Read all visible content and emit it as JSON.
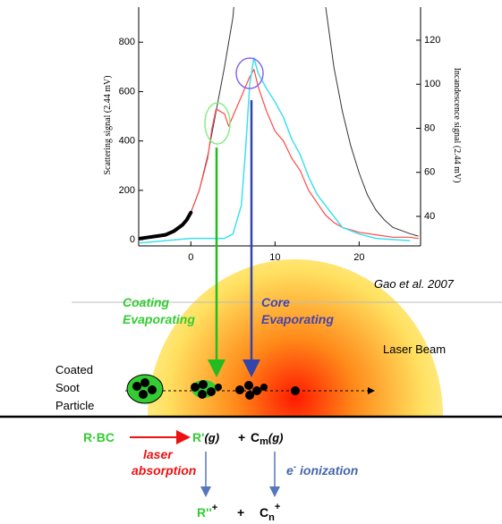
{
  "chart_data": {
    "type": "line",
    "xlim": [
      -6.2,
      27.3
    ],
    "xticks": [
      0,
      10,
      20
    ],
    "ylim": [
      -25,
      942
    ],
    "yticks": [
      0,
      200,
      400,
      600,
      800
    ],
    "y2lim": [
      26.6,
      135
    ],
    "y2ticks": [
      40,
      60,
      80,
      100,
      120
    ],
    "ylabel": "Scattering signal (2.44 mV)",
    "y2label": "Incandescence signal (2.44 mV)",
    "annotation": "Gao et al. 2007",
    "series": [
      {
        "color": "#333333",
        "line_width": 1,
        "x": [
          0,
          1,
          2,
          3,
          4,
          5,
          5.5,
          10,
          15.6,
          16,
          17,
          18,
          19,
          20,
          21,
          22,
          23,
          24,
          26,
          27
        ],
        "values": [
          110,
          200,
          340,
          520,
          700,
          900,
          1100,
          null,
          1100,
          950,
          700,
          520,
          380,
          270,
          180,
          120,
          80,
          50,
          25,
          15
        ]
      },
      {
        "color": "#ff4a4a",
        "line_width": 1.2,
        "x": [
          0,
          1,
          2,
          2.5,
          3,
          4,
          4.5,
          5,
          6,
          7,
          7.5,
          8,
          9,
          10,
          11,
          12,
          13,
          14,
          15,
          16,
          17,
          18,
          20,
          22,
          24,
          26,
          27
        ],
        "values": [
          110,
          200,
          330,
          450,
          530,
          510,
          460,
          500,
          580,
          660,
          690,
          620,
          520,
          440,
          400,
          330,
          280,
          200,
          150,
          100,
          70,
          50,
          30,
          20,
          10,
          10,
          5
        ]
      },
      {
        "color": "#3fe0f0",
        "line_width": 1.5,
        "axis": "y2",
        "x": [
          -6,
          0,
          4,
          5,
          6,
          6.5,
          7,
          7.5,
          8,
          9,
          10,
          11,
          12,
          13,
          14,
          15,
          16,
          17,
          18,
          20,
          22,
          26
        ],
        "values": [
          28,
          30,
          30,
          32,
          45,
          70,
          100,
          112,
          105,
          98,
          92,
          85,
          75,
          68,
          58,
          50,
          45,
          40,
          35,
          32,
          30,
          29
        ]
      },
      {
        "color": "#000000",
        "line_width": 4,
        "x": [
          -6,
          -5,
          -4,
          -3,
          -2,
          -1,
          -0.5,
          0
        ],
        "values": [
          5,
          10,
          15,
          20,
          35,
          60,
          80,
          110
        ]
      }
    ]
  },
  "diagram": {
    "coating": [
      "Coating",
      "Evaporating"
    ],
    "core": [
      "Core",
      "Evaporating"
    ],
    "laser_beam": "Laser Beam",
    "particle": [
      "Coated",
      "Soot",
      "Particle"
    ],
    "reaction": {
      "reactant": "R·BC",
      "process1": [
        "laser",
        "absorption"
      ],
      "product1": {
        "base": "R'",
        "state": "(g)"
      },
      "plus1": "+",
      "product2": {
        "base": "C",
        "sub": "m",
        "state": "(g)"
      },
      "process2": {
        "base": "e",
        "sup": "-",
        "text": " ionization"
      },
      "ion1": {
        "base": "R''",
        "sup": "+"
      },
      "plus2": "+",
      "ion2": {
        "base": "C",
        "sub": "n",
        "sup": "+"
      }
    }
  }
}
